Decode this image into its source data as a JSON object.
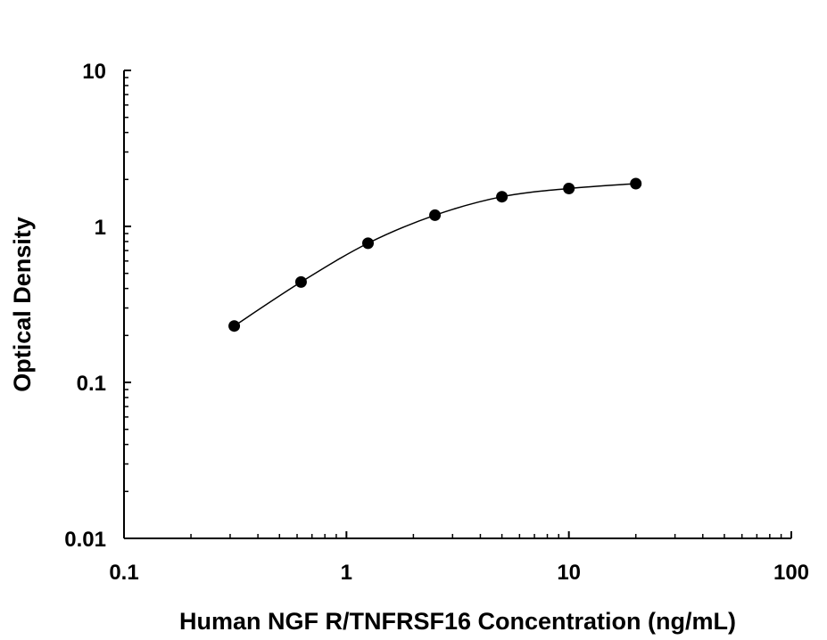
{
  "chart_data": {
    "type": "scatter",
    "title": "",
    "xlabel": "Human NGF R/TNFRSF16 Concentration (ng/mL)",
    "ylabel": "Optical Density",
    "x_scale": "log",
    "y_scale": "log",
    "xlim": [
      0.1,
      100
    ],
    "ylim": [
      0.01,
      10
    ],
    "x_ticks": [
      "0.1",
      "1",
      "10",
      "100"
    ],
    "y_ticks": [
      "0.01",
      "0.1",
      "1",
      "10"
    ],
    "grid": false,
    "legend": "none",
    "series": [
      {
        "points": [
          {
            "x": 0.313,
            "y": 0.23
          },
          {
            "x": 0.625,
            "y": 0.44
          },
          {
            "x": 1.25,
            "y": 0.78
          },
          {
            "x": 2.5,
            "y": 1.18
          },
          {
            "x": 5,
            "y": 1.55
          },
          {
            "x": 10,
            "y": 1.75
          },
          {
            "x": 20,
            "y": 1.88
          }
        ]
      }
    ],
    "colors": {
      "marker": "#000000",
      "curve": "#000000",
      "axis": "#000000"
    }
  }
}
